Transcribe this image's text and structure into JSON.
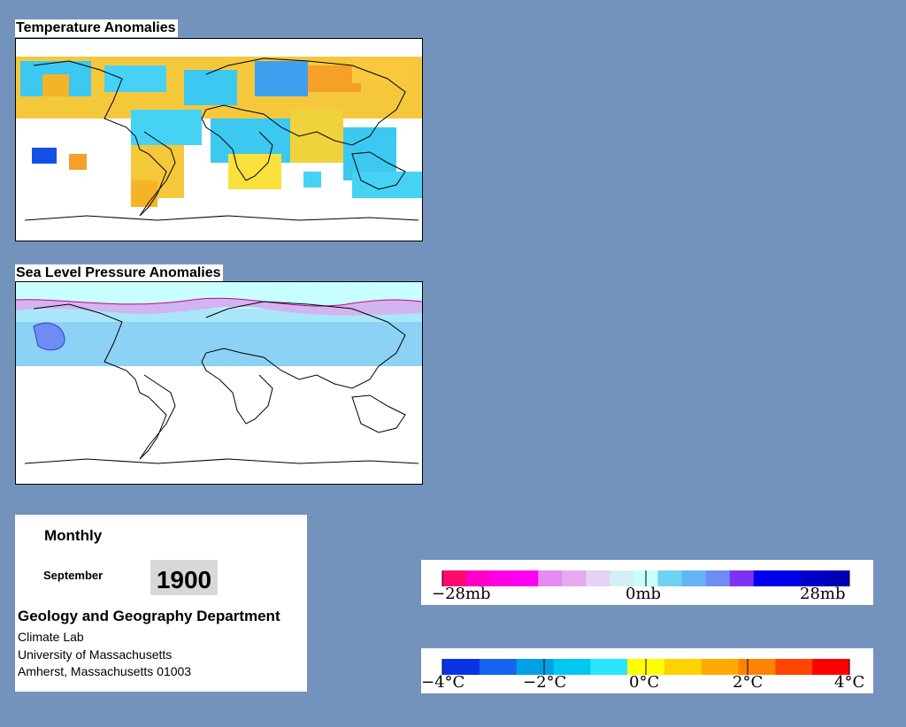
{
  "temperature_map": {
    "title": "Temperature Anomalies"
  },
  "pressure_map": {
    "title": "Sea Level Pressure Anomalies"
  },
  "info": {
    "period": "Monthly",
    "month": "September",
    "year": "1900",
    "department": "Geology and Geography Department",
    "lab": "Climate Lab",
    "university": "University of Massachusetts",
    "address": "Amherst, Massachusetts 01003"
  },
  "pressure_legend": {
    "colors": [
      "#ff0a6e",
      "#ff00c8",
      "#ff00e6",
      "#ff00f5",
      "#e68cf0",
      "#e6aaf0",
      "#e6d2f5",
      "#d2f0f5",
      "#c8ffff",
      "#6ed2f0",
      "#64b4f5",
      "#6e8cf5",
      "#7d32f5",
      "#0000f0",
      "#0000e6",
      "#0000c8",
      "#0000b4"
    ],
    "ticks": [
      "−28mb",
      "0mb",
      "28mb"
    ]
  },
  "temperature_legend": {
    "colors": [
      "#0a32e6",
      "#1464f0",
      "#00a0e6",
      "#00c8f0",
      "#28e6ff",
      "#ffff00",
      "#ffd200",
      "#ffaa00",
      "#ff8200",
      "#ff4600",
      "#ff0000"
    ],
    "ticks": [
      "−4°C",
      "−2°C",
      "0°C",
      "2°C",
      "4°C"
    ]
  }
}
